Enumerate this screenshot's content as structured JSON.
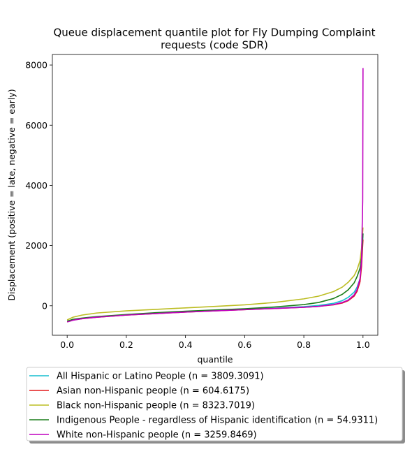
{
  "chart_data": {
    "type": "line",
    "title_lines": [
      "Queue displacement quantile plot for Fly Dumping Complaint",
      "requests (code SDR)"
    ],
    "xlabel": "quantile",
    "ylabel": "Displacement (positive = late, negative = early)",
    "xlim": [
      -0.05,
      1.05
    ],
    "ylim": [
      -980,
      8350
    ],
    "x_ticks": [
      0.0,
      0.2,
      0.4,
      0.6,
      0.8,
      1.0
    ],
    "x_tick_labels": [
      "0.0",
      "0.2",
      "0.4",
      "0.6",
      "0.8",
      "1.0"
    ],
    "y_ticks": [
      0,
      2000,
      4000,
      6000,
      8000
    ],
    "y_tick_labels": [
      "0",
      "2000",
      "4000",
      "6000",
      "8000"
    ],
    "grid": false,
    "legend_position": "below plot",
    "series": [
      {
        "name": "All Hispanic or Latino People (n = 3809.3091)",
        "color": "#17becf",
        "points": [
          [
            0.0,
            -520
          ],
          [
            0.02,
            -460
          ],
          [
            0.05,
            -420
          ],
          [
            0.1,
            -370
          ],
          [
            0.2,
            -300
          ],
          [
            0.3,
            -250
          ],
          [
            0.4,
            -200
          ],
          [
            0.5,
            -160
          ],
          [
            0.6,
            -120
          ],
          [
            0.7,
            -80
          ],
          [
            0.8,
            -30
          ],
          [
            0.85,
            10
          ],
          [
            0.9,
            80
          ],
          [
            0.93,
            170
          ],
          [
            0.95,
            280
          ],
          [
            0.97,
            450
          ],
          [
            0.98,
            620
          ],
          [
            0.99,
            900
          ],
          [
            0.995,
            1400
          ],
          [
            1.0,
            2400
          ]
        ]
      },
      {
        "name": "Asian non-Hispanic people (n = 604.6175)",
        "color": "#e41a1c",
        "points": [
          [
            0.0,
            -530
          ],
          [
            0.02,
            -470
          ],
          [
            0.05,
            -430
          ],
          [
            0.1,
            -380
          ],
          [
            0.2,
            -310
          ],
          [
            0.3,
            -260
          ],
          [
            0.4,
            -210
          ],
          [
            0.5,
            -170
          ],
          [
            0.6,
            -130
          ],
          [
            0.7,
            -90
          ],
          [
            0.8,
            -50
          ],
          [
            0.85,
            -20
          ],
          [
            0.9,
            30
          ],
          [
            0.93,
            90
          ],
          [
            0.95,
            170
          ],
          [
            0.97,
            320
          ],
          [
            0.98,
            480
          ],
          [
            0.99,
            800
          ],
          [
            0.995,
            1300
          ],
          [
            1.0,
            2200
          ]
        ]
      },
      {
        "name": "Black non-Hispanic people (n = 8323.7019)",
        "color": "#bcbd22",
        "points": [
          [
            0.0,
            -470
          ],
          [
            0.02,
            -380
          ],
          [
            0.05,
            -310
          ],
          [
            0.1,
            -240
          ],
          [
            0.2,
            -170
          ],
          [
            0.3,
            -120
          ],
          [
            0.4,
            -70
          ],
          [
            0.5,
            -20
          ],
          [
            0.6,
            30
          ],
          [
            0.7,
            110
          ],
          [
            0.8,
            230
          ],
          [
            0.85,
            320
          ],
          [
            0.9,
            470
          ],
          [
            0.93,
            620
          ],
          [
            0.95,
            780
          ],
          [
            0.97,
            1000
          ],
          [
            0.98,
            1200
          ],
          [
            0.99,
            1500
          ],
          [
            0.995,
            1900
          ],
          [
            1.0,
            2600
          ]
        ]
      },
      {
        "name": "Indigenous People - regardless of Hispanic identification (n = 54.9311)",
        "color": "#1a7d1a",
        "points": [
          [
            0.0,
            -510
          ],
          [
            0.02,
            -450
          ],
          [
            0.05,
            -410
          ],
          [
            0.1,
            -360
          ],
          [
            0.2,
            -290
          ],
          [
            0.3,
            -230
          ],
          [
            0.4,
            -180
          ],
          [
            0.5,
            -140
          ],
          [
            0.6,
            -100
          ],
          [
            0.7,
            -40
          ],
          [
            0.8,
            40
          ],
          [
            0.85,
            110
          ],
          [
            0.9,
            240
          ],
          [
            0.93,
            380
          ],
          [
            0.95,
            530
          ],
          [
            0.97,
            760
          ],
          [
            0.98,
            970
          ],
          [
            0.99,
            1250
          ],
          [
            0.995,
            1600
          ],
          [
            1.0,
            2400
          ]
        ]
      },
      {
        "name": "White non-Hispanic people (n = 3259.8469)",
        "color": "#bf00bf",
        "points": [
          [
            0.0,
            -540
          ],
          [
            0.02,
            -480
          ],
          [
            0.05,
            -430
          ],
          [
            0.1,
            -380
          ],
          [
            0.2,
            -310
          ],
          [
            0.3,
            -260
          ],
          [
            0.4,
            -210
          ],
          [
            0.5,
            -170
          ],
          [
            0.6,
            -130
          ],
          [
            0.7,
            -90
          ],
          [
            0.8,
            -50
          ],
          [
            0.85,
            -20
          ],
          [
            0.9,
            40
          ],
          [
            0.93,
            110
          ],
          [
            0.95,
            190
          ],
          [
            0.97,
            360
          ],
          [
            0.98,
            540
          ],
          [
            0.99,
            900
          ],
          [
            0.995,
            1500
          ],
          [
            0.999,
            3500
          ],
          [
            1.0,
            7900
          ]
        ]
      }
    ]
  }
}
